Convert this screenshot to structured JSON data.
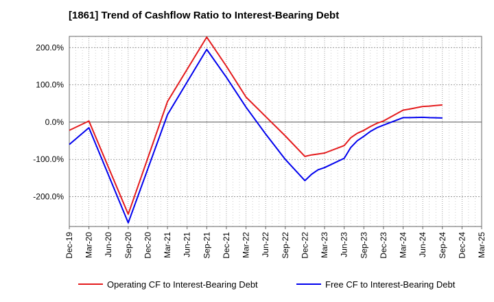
{
  "title": "[1861]  Trend of Cashflow Ratio to Interest-Bearing Debt",
  "chart_data": {
    "type": "line",
    "title": "[1861]  Trend of Cashflow Ratio to Interest-Bearing Debt",
    "xlabel": "",
    "ylabel": "",
    "x_tick_labels": [
      "Dec-19",
      "Mar-20",
      "Jun-20",
      "Sep-20",
      "Dec-20",
      "Mar-21",
      "Jun-21",
      "Sep-21",
      "Dec-21",
      "Mar-22",
      "Jun-22",
      "Sep-22",
      "Dec-22",
      "Mar-23",
      "Jun-23",
      "Sep-23",
      "Dec-23",
      "Mar-24",
      "Jun-24",
      "Sep-24",
      "Dec-24",
      "Mar-25"
    ],
    "y_tick_labels": [
      "200.0%",
      "100.0%",
      "0.0%",
      "-100.0%",
      "-200.0%"
    ],
    "y_ticks": [
      200,
      100,
      0,
      -100,
      -200
    ],
    "ylim": [
      -280,
      230
    ],
    "grid": true,
    "legend_position": "bottom",
    "series": [
      {
        "name": "Operating CF to Interest-Bearing Debt",
        "color": "#e41a1c",
        "x": [
          "Dec-19",
          "Mar-20",
          "Sep-20",
          "Mar-21",
          "Sep-21",
          "Dec-21",
          "Mar-22",
          "Jun-22",
          "Sep-22",
          "Dec-22",
          "Jan-23",
          "Mar-23",
          "Jun-23",
          "Jul-23",
          "Aug-23",
          "Sep-23",
          "Oct-23",
          "Nov-23",
          "Dec-23",
          "Mar-24",
          "Apr-24",
          "Jun-24",
          "Jul-24",
          "Sep-24"
        ],
        "values": [
          -22,
          3,
          -247,
          55,
          228,
          150,
          67,
          15,
          -37,
          -92,
          -88,
          -83,
          -63,
          -42,
          -30,
          -22,
          -12,
          -3,
          3,
          32,
          35,
          42,
          43,
          46
        ]
      },
      {
        "name": "Free CF to Interest-Bearing Debt",
        "color": "#0000ee",
        "x": [
          "Dec-19",
          "Mar-20",
          "Sep-20",
          "Mar-21",
          "Sep-21",
          "Dec-21",
          "Mar-22",
          "Jun-22",
          "Sep-22",
          "Dec-22",
          "Jan-23",
          "Feb-23",
          "Mar-23",
          "Jun-23",
          "Jul-23",
          "Aug-23",
          "Sep-23",
          "Oct-23",
          "Nov-23",
          "Dec-23",
          "Mar-24",
          "Apr-24",
          "Jun-24",
          "Jul-24",
          "Sep-24"
        ],
        "values": [
          -60,
          -15,
          -270,
          20,
          195,
          120,
          40,
          -32,
          -100,
          -157,
          -140,
          -128,
          -122,
          -97,
          -68,
          -50,
          -38,
          -25,
          -15,
          -8,
          12,
          12,
          13,
          12,
          11
        ]
      }
    ]
  }
}
